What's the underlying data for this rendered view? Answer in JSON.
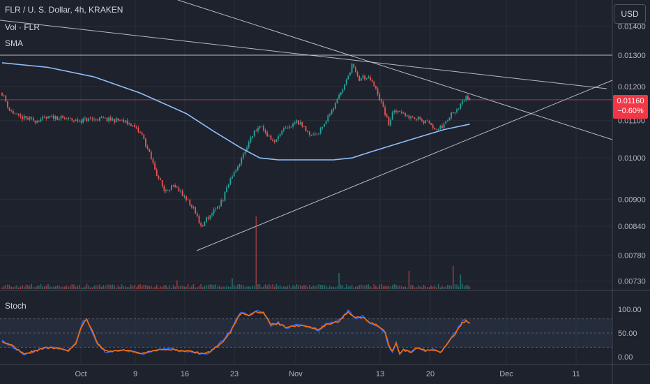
{
  "header": {
    "symbol_line": "FLR / U. S. Dollar, 4h, KRAKEN",
    "volume_label": "Vol · FLR",
    "sma_label": "SMA",
    "currency_button": "USD"
  },
  "current_price": {
    "value": "0.01160",
    "change": "−0.60%"
  },
  "colors": {
    "background": "#1e222d",
    "up_candle": "#26a69a",
    "down_candle": "#ef5350",
    "sma": "#90bff9",
    "trendline": "#d1d4dc",
    "stoch_k": "#2962ff",
    "stoch_d": "#ff6d00",
    "stoch_band": "#2a3548",
    "price_badge": "#f23645"
  },
  "chart_data": [
    {
      "type": "candlestick",
      "title": "FLR / U. S. Dollar, 4h, KRAKEN",
      "price_axis_ticks": [
        "0.01400",
        "0.01300",
        "0.01200",
        "0.01100",
        "0.01000",
        "0.00900",
        "0.00840",
        "0.00780",
        "0.00730"
      ],
      "time_axis_ticks": [
        "Oct",
        "9",
        "16",
        "23",
        "Nov",
        "13",
        "20",
        "Dec",
        "11"
      ],
      "ylim": [
        0.0072,
        0.0145
      ],
      "horizontal_level": 0.013,
      "last_price": 0.0116,
      "price_path": [
        [
          0,
          0.0118
        ],
        [
          4,
          0.0113
        ],
        [
          9,
          0.0111
        ],
        [
          18,
          0.011
        ],
        [
          28,
          0.0111
        ],
        [
          40,
          0.011
        ],
        [
          52,
          0.01105
        ],
        [
          64,
          0.011
        ],
        [
          70,
          0.0109
        ],
        [
          76,
          0.0106
        ],
        [
          80,
          0.0101
        ],
        [
          84,
          0.0096
        ],
        [
          88,
          0.0092
        ],
        [
          92,
          0.0093
        ],
        [
          96,
          0.0092
        ],
        [
          100,
          0.009
        ],
        [
          104,
          0.0088
        ],
        [
          108,
          0.0084
        ],
        [
          112,
          0.0086
        ],
        [
          116,
          0.0088
        ],
        [
          120,
          0.009
        ],
        [
          124,
          0.0095
        ],
        [
          128,
          0.0098
        ],
        [
          132,
          0.0102
        ],
        [
          136,
          0.0106
        ],
        [
          140,
          0.0109
        ],
        [
          144,
          0.0106
        ],
        [
          148,
          0.0104
        ],
        [
          152,
          0.0107
        ],
        [
          156,
          0.0108
        ],
        [
          160,
          0.011
        ],
        [
          164,
          0.0108
        ],
        [
          168,
          0.0106
        ],
        [
          172,
          0.0107
        ],
        [
          176,
          0.011
        ],
        [
          180,
          0.0114
        ],
        [
          184,
          0.0118
        ],
        [
          188,
          0.0123
        ],
        [
          190,
          0.0127
        ],
        [
          192,
          0.0124
        ],
        [
          194,
          0.0122
        ],
        [
          196,
          0.0123
        ],
        [
          200,
          0.0122
        ],
        [
          204,
          0.0118
        ],
        [
          208,
          0.0112
        ],
        [
          210,
          0.0109
        ],
        [
          212,
          0.0112
        ],
        [
          216,
          0.0113
        ],
        [
          220,
          0.0111
        ],
        [
          224,
          0.0111
        ],
        [
          228,
          0.011
        ],
        [
          232,
          0.0109
        ],
        [
          236,
          0.0107
        ],
        [
          240,
          0.0109
        ],
        [
          244,
          0.0112
        ],
        [
          248,
          0.0114
        ],
        [
          252,
          0.0117
        ],
        [
          254,
          0.0116
        ]
      ],
      "sma_path": [
        [
          0,
          0.01275
        ],
        [
          25,
          0.0126
        ],
        [
          50,
          0.0123
        ],
        [
          75,
          0.0118
        ],
        [
          100,
          0.0112
        ],
        [
          115,
          0.0107
        ],
        [
          130,
          0.01025
        ],
        [
          140,
          0.01
        ],
        [
          150,
          0.00995
        ],
        [
          165,
          0.00995
        ],
        [
          180,
          0.00995
        ],
        [
          190,
          0.01
        ],
        [
          200,
          0.01015
        ],
        [
          210,
          0.0103
        ],
        [
          220,
          0.01045
        ],
        [
          230,
          0.0106
        ],
        [
          240,
          0.01075
        ],
        [
          254,
          0.0109
        ]
      ],
      "volume_spikes": [
        [
          138,
          1.0
        ],
        [
          183,
          0.22
        ],
        [
          221,
          0.25
        ],
        [
          245,
          0.32
        ],
        [
          249,
          0.2
        ],
        [
          125,
          0.15
        ],
        [
          95,
          0.12
        ]
      ]
    },
    {
      "type": "line",
      "title": "Stoch",
      "y_axis_ticks": [
        "100.00",
        "50.00",
        "0.00"
      ],
      "ylim": [
        0,
        100
      ],
      "band": [
        20,
        80
      ],
      "series": [
        {
          "role": "k",
          "values": [
            [
              0,
              35
            ],
            [
              6,
              20
            ],
            [
              12,
              5
            ],
            [
              18,
              12
            ],
            [
              24,
              20
            ],
            [
              30,
              18
            ],
            [
              36,
              12
            ],
            [
              40,
              30
            ],
            [
              44,
              75
            ],
            [
              46,
              80
            ],
            [
              48,
              60
            ],
            [
              52,
              25
            ],
            [
              56,
              10
            ],
            [
              60,
              12
            ],
            [
              66,
              15
            ],
            [
              72,
              10
            ],
            [
              76,
              5
            ],
            [
              82,
              12
            ],
            [
              90,
              18
            ],
            [
              96,
              12
            ],
            [
              104,
              10
            ],
            [
              108,
              5
            ],
            [
              112,
              8
            ],
            [
              116,
              20
            ],
            [
              120,
              35
            ],
            [
              124,
              55
            ],
            [
              128,
              85
            ],
            [
              130,
              95
            ],
            [
              134,
              88
            ],
            [
              138,
              98
            ],
            [
              142,
              92
            ],
            [
              146,
              65
            ],
            [
              150,
              72
            ],
            [
              154,
              60
            ],
            [
              160,
              68
            ],
            [
              166,
              64
            ],
            [
              172,
              55
            ],
            [
              176,
              70
            ],
            [
              180,
              72
            ],
            [
              184,
              80
            ],
            [
              188,
              98
            ],
            [
              192,
              80
            ],
            [
              196,
              85
            ],
            [
              200,
              70
            ],
            [
              204,
              65
            ],
            [
              208,
              50
            ],
            [
              210,
              20
            ],
            [
              212,
              10
            ],
            [
              214,
              30
            ],
            [
              216,
              5
            ],
            [
              218,
              15
            ],
            [
              222,
              10
            ],
            [
              226,
              20
            ],
            [
              230,
              12
            ],
            [
              234,
              15
            ],
            [
              238,
              8
            ],
            [
              242,
              30
            ],
            [
              246,
              50
            ],
            [
              250,
              75
            ],
            [
              252,
              78
            ],
            [
              254,
              70
            ]
          ]
        },
        {
          "role": "d",
          "values": [
            [
              0,
              33
            ],
            [
              6,
              22
            ],
            [
              12,
              7
            ],
            [
              18,
              12
            ],
            [
              24,
              19
            ],
            [
              30,
              18
            ],
            [
              36,
              14
            ],
            [
              40,
              28
            ],
            [
              44,
              70
            ],
            [
              46,
              78
            ],
            [
              48,
              62
            ],
            [
              52,
              28
            ],
            [
              56,
              12
            ],
            [
              60,
              12
            ],
            [
              66,
              14
            ],
            [
              72,
              11
            ],
            [
              76,
              7
            ],
            [
              82,
              12
            ],
            [
              90,
              17
            ],
            [
              96,
              13
            ],
            [
              104,
              11
            ],
            [
              108,
              7
            ],
            [
              112,
              9
            ],
            [
              116,
              19
            ],
            [
              120,
              33
            ],
            [
              124,
              52
            ],
            [
              128,
              82
            ],
            [
              130,
              92
            ],
            [
              134,
              88
            ],
            [
              138,
              95
            ],
            [
              142,
              92
            ],
            [
              146,
              68
            ],
            [
              150,
              70
            ],
            [
              154,
              62
            ],
            [
              160,
              66
            ],
            [
              166,
              64
            ],
            [
              172,
              57
            ],
            [
              176,
              68
            ],
            [
              180,
              71
            ],
            [
              184,
              78
            ],
            [
              188,
              95
            ],
            [
              192,
              82
            ],
            [
              196,
              84
            ],
            [
              200,
              72
            ],
            [
              204,
              66
            ],
            [
              208,
              52
            ],
            [
              210,
              24
            ],
            [
              212,
              13
            ],
            [
              214,
              27
            ],
            [
              216,
              8
            ],
            [
              218,
              14
            ],
            [
              222,
              11
            ],
            [
              226,
              19
            ],
            [
              230,
              13
            ],
            [
              234,
              14
            ],
            [
              238,
              10
            ],
            [
              242,
              28
            ],
            [
              246,
              48
            ],
            [
              250,
              72
            ],
            [
              252,
              76
            ],
            [
              254,
              72
            ]
          ]
        }
      ]
    }
  ]
}
